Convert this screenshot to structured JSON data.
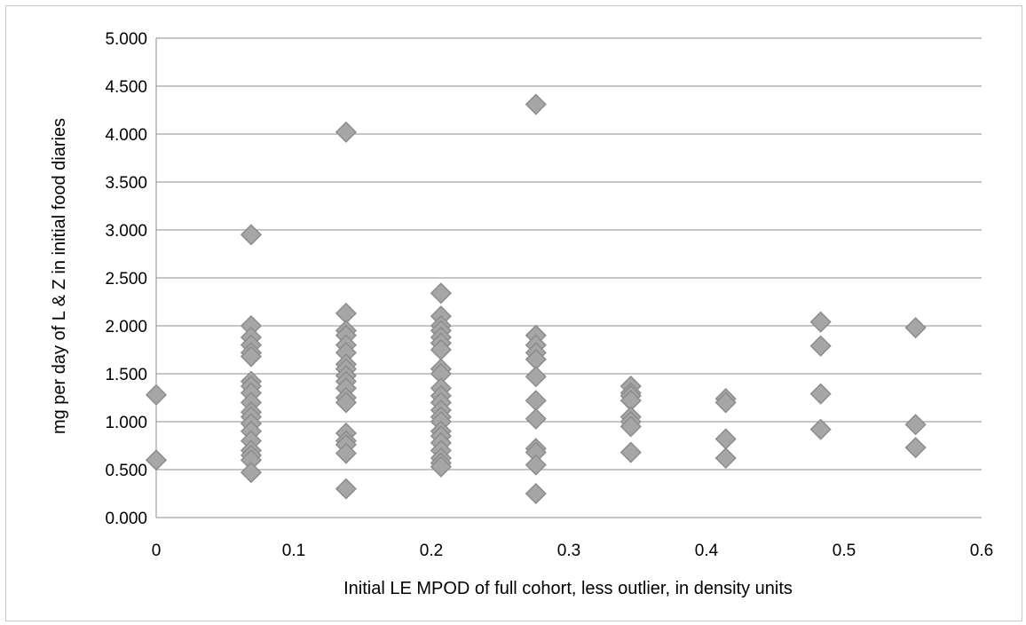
{
  "chart_data": {
    "type": "scatter",
    "xlabel": "Initial LE MPOD of full cohort, less outlier, in density units",
    "ylabel": "mg per day of L & Z  in initial food diaries",
    "xlim": [
      0,
      0.6
    ],
    "ylim": [
      0,
      5
    ],
    "x_ticks": [
      "0",
      "0.1",
      "0.2",
      "0.3",
      "0.4",
      "0.5",
      "0.6"
    ],
    "y_ticks": [
      "0.000",
      "0.500",
      "1.000",
      "1.500",
      "2.000",
      "2.500",
      "3.000",
      "3.500",
      "4.000",
      "4.500",
      "5.000"
    ],
    "grid": "horizontal",
    "legend": "none",
    "marker": "diamond",
    "marker_color": "#a6a6a6",
    "marker_edge_color": "#8c8c8c",
    "points": [
      [
        0,
        1.28
      ],
      [
        0,
        0.6
      ],
      [
        0.069,
        2.95
      ],
      [
        0.069,
        2.0
      ],
      [
        0.069,
        1.88
      ],
      [
        0.069,
        1.8
      ],
      [
        0.069,
        1.72
      ],
      [
        0.069,
        1.68
      ],
      [
        0.069,
        1.42
      ],
      [
        0.069,
        1.37
      ],
      [
        0.069,
        1.3
      ],
      [
        0.069,
        1.2
      ],
      [
        0.069,
        1.1
      ],
      [
        0.069,
        1.05
      ],
      [
        0.069,
        0.98
      ],
      [
        0.069,
        0.9
      ],
      [
        0.069,
        0.8
      ],
      [
        0.069,
        0.7
      ],
      [
        0.069,
        0.65
      ],
      [
        0.069,
        0.6
      ],
      [
        0.069,
        0.47
      ],
      [
        0.138,
        4.02
      ],
      [
        0.138,
        2.13
      ],
      [
        0.138,
        1.95
      ],
      [
        0.138,
        1.9
      ],
      [
        0.138,
        1.8
      ],
      [
        0.138,
        1.72
      ],
      [
        0.138,
        1.6
      ],
      [
        0.138,
        1.55
      ],
      [
        0.138,
        1.48
      ],
      [
        0.138,
        1.42
      ],
      [
        0.138,
        1.35
      ],
      [
        0.138,
        1.25
      ],
      [
        0.138,
        1.2
      ],
      [
        0.138,
        0.88
      ],
      [
        0.138,
        0.8
      ],
      [
        0.138,
        0.76
      ],
      [
        0.138,
        0.67
      ],
      [
        0.138,
        0.3
      ],
      [
        0.207,
        2.34
      ],
      [
        0.207,
        2.1
      ],
      [
        0.207,
        2.0
      ],
      [
        0.207,
        1.95
      ],
      [
        0.207,
        1.88
      ],
      [
        0.207,
        1.82
      ],
      [
        0.207,
        1.75
      ],
      [
        0.207,
        1.55
      ],
      [
        0.207,
        1.5
      ],
      [
        0.207,
        1.35
      ],
      [
        0.207,
        1.27
      ],
      [
        0.207,
        1.2
      ],
      [
        0.207,
        1.12
      ],
      [
        0.207,
        1.05
      ],
      [
        0.207,
        1.0
      ],
      [
        0.207,
        0.9
      ],
      [
        0.207,
        0.85
      ],
      [
        0.207,
        0.78
      ],
      [
        0.207,
        0.7
      ],
      [
        0.207,
        0.62
      ],
      [
        0.207,
        0.57
      ],
      [
        0.207,
        0.53
      ],
      [
        0.276,
        4.31
      ],
      [
        0.276,
        1.9
      ],
      [
        0.276,
        1.8
      ],
      [
        0.276,
        1.72
      ],
      [
        0.276,
        1.65
      ],
      [
        0.276,
        1.47
      ],
      [
        0.276,
        1.22
      ],
      [
        0.276,
        1.03
      ],
      [
        0.276,
        0.72
      ],
      [
        0.276,
        0.68
      ],
      [
        0.276,
        0.55
      ],
      [
        0.276,
        0.25
      ],
      [
        0.345,
        1.37
      ],
      [
        0.345,
        1.3
      ],
      [
        0.345,
        1.27
      ],
      [
        0.345,
        1.22
      ],
      [
        0.345,
        1.05
      ],
      [
        0.345,
        1.0
      ],
      [
        0.345,
        0.95
      ],
      [
        0.345,
        0.68
      ],
      [
        0.414,
        1.24
      ],
      [
        0.414,
        1.2
      ],
      [
        0.414,
        0.82
      ],
      [
        0.414,
        0.62
      ],
      [
        0.483,
        2.04
      ],
      [
        0.483,
        1.79
      ],
      [
        0.483,
        1.29
      ],
      [
        0.483,
        0.92
      ],
      [
        0.552,
        1.98
      ],
      [
        0.552,
        0.97
      ],
      [
        0.552,
        0.73
      ]
    ]
  }
}
